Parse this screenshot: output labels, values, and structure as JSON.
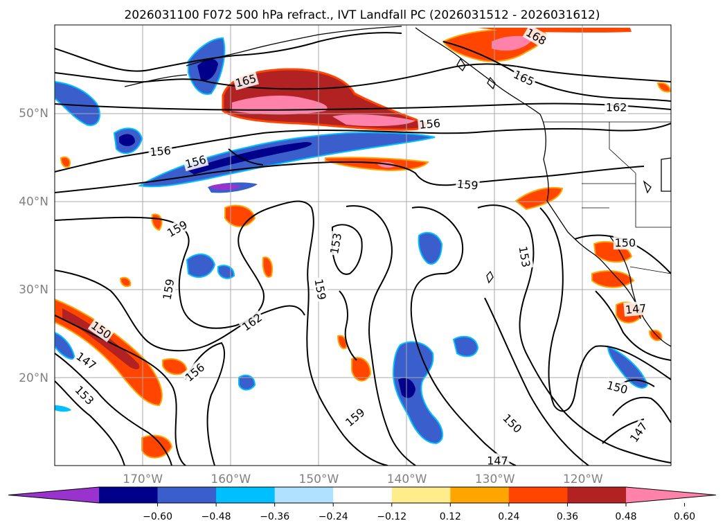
{
  "chart_data": {
    "type": "contour-map",
    "title": "2026031100 F072 500 hPa refract., IVT Landfall PC (2026031512 - 2026031612)",
    "projection": "PlateCarree",
    "lon_range": [
      -180,
      -110
    ],
    "lat_range": [
      10,
      60
    ],
    "x_ticks": [
      {
        "value": -170,
        "label": "170°W"
      },
      {
        "value": -160,
        "label": "160°W"
      },
      {
        "value": -150,
        "label": "150°W"
      },
      {
        "value": -140,
        "label": "140°W"
      },
      {
        "value": -130,
        "label": "130°W"
      },
      {
        "value": -120,
        "label": "120°W"
      }
    ],
    "y_ticks": [
      {
        "value": 20,
        "label": "20°N"
      },
      {
        "value": 30,
        "label": "30°N"
      },
      {
        "value": 40,
        "label": "40°N"
      },
      {
        "value": 50,
        "label": "50°N"
      }
    ],
    "grid": true,
    "colorbar": {
      "orientation": "horizontal",
      "extend": "both",
      "boundaries": [
        -0.72,
        -0.6,
        -0.48,
        -0.36,
        -0.24,
        -0.12,
        0.12,
        0.24,
        0.36,
        0.48,
        0.6,
        0.72
      ],
      "colors": [
        "#9a32cd",
        "#00008b",
        "#3a5fcd",
        "#00bfff",
        "#b0e2ff",
        "#ffffff",
        "#ffec8b",
        "#ffa500",
        "#ff4500",
        "#b22222",
        "#ff82ab"
      ],
      "ticks": [
        "−0.60",
        "−0.48",
        "−0.36",
        "−0.24",
        "−0.12",
        "0.12",
        "0.24",
        "0.36",
        "0.48",
        "0.60"
      ]
    },
    "contour_labels": [
      {
        "text": "165",
        "lon": -158.3,
        "lat": 53.7,
        "rot": -15
      },
      {
        "text": "168",
        "lon": -125.3,
        "lat": 58.7,
        "rot": 30
      },
      {
        "text": "165",
        "lon": -126.7,
        "lat": 54.0,
        "rot": 25
      },
      {
        "text": "162",
        "lon": -116.2,
        "lat": 50.7,
        "rot": 0
      },
      {
        "text": "156",
        "lon": -168.0,
        "lat": 45.7,
        "rot": -5
      },
      {
        "text": "156",
        "lon": -164.0,
        "lat": 44.5,
        "rot": -15
      },
      {
        "text": "156",
        "lon": -137.4,
        "lat": 48.8,
        "rot": -5
      },
      {
        "text": "159",
        "lon": -133.1,
        "lat": 41.9,
        "rot": 5
      },
      {
        "text": "159",
        "lon": -166.1,
        "lat": 36.9,
        "rot": -30
      },
      {
        "text": "153",
        "lon": -148.1,
        "lat": 35.2,
        "rot": -80
      },
      {
        "text": "150",
        "lon": -115.2,
        "lat": 35.3,
        "rot": 0
      },
      {
        "text": "153",
        "lon": -126.6,
        "lat": 33.7,
        "rot": 80
      },
      {
        "text": "159",
        "lon": -167.1,
        "lat": 30.0,
        "rot": -80
      },
      {
        "text": "159",
        "lon": -149.8,
        "lat": 30.0,
        "rot": 80
      },
      {
        "text": "147",
        "lon": -114.0,
        "lat": 27.8,
        "rot": -5
      },
      {
        "text": "162",
        "lon": -157.6,
        "lat": 26.3,
        "rot": -35
      },
      {
        "text": "150",
        "lon": -174.7,
        "lat": 25.4,
        "rot": 35
      },
      {
        "text": "147",
        "lon": -176.4,
        "lat": 21.9,
        "rot": 35
      },
      {
        "text": "156",
        "lon": -164.1,
        "lat": 20.6,
        "rot": -40
      },
      {
        "text": "153",
        "lon": -176.6,
        "lat": 18.0,
        "rot": 45
      },
      {
        "text": "150",
        "lon": -116.1,
        "lat": 18.9,
        "rot": 15
      },
      {
        "text": "159",
        "lon": -145.9,
        "lat": 15.5,
        "rot": -40
      },
      {
        "text": "150",
        "lon": -128.0,
        "lat": 14.8,
        "rot": 45
      },
      {
        "text": "147",
        "lon": -113.7,
        "lat": 13.8,
        "rot": -55
      },
      {
        "text": "147",
        "lon": -129.7,
        "lat": 10.6,
        "rot": 0
      }
    ]
  }
}
